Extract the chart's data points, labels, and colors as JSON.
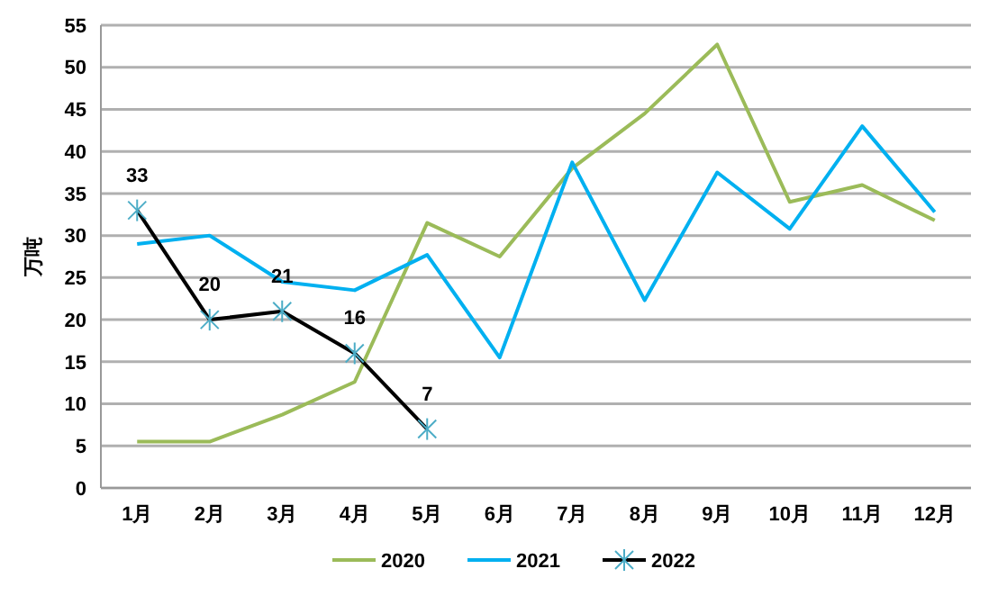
{
  "chart_data": {
    "type": "line",
    "ylabel": "万吨",
    "categories": [
      "1月",
      "2月",
      "3月",
      "4月",
      "5月",
      "6月",
      "7月",
      "8月",
      "9月",
      "10月",
      "11月",
      "12月"
    ],
    "ylim": [
      0,
      55
    ],
    "yticks": [
      0,
      5,
      10,
      15,
      20,
      25,
      30,
      35,
      40,
      45,
      50,
      55
    ],
    "grid": "y",
    "legend": "bottom",
    "marker": "none",
    "series": [
      {
        "name": "2020",
        "color": "#9bbb59",
        "values": [
          5.5,
          5.5,
          8.7,
          12.6,
          31.5,
          27.5,
          38,
          44.5,
          52.7,
          34,
          36,
          31.8
        ]
      },
      {
        "name": "2021",
        "color": "#00b0f0",
        "values": [
          29,
          30,
          24.5,
          23.5,
          27.7,
          15.5,
          38.7,
          22.3,
          37.5,
          30.8,
          43,
          32.8
        ]
      },
      {
        "name": "2022",
        "color": "#000000",
        "marker": "cross",
        "values": [
          33,
          20,
          21,
          16,
          7,
          null,
          null,
          null,
          null,
          null,
          null,
          null
        ],
        "value_labels": [
          "33",
          "20",
          "21",
          "16",
          "7",
          null,
          null,
          null,
          null,
          null,
          null,
          null
        ]
      }
    ]
  }
}
